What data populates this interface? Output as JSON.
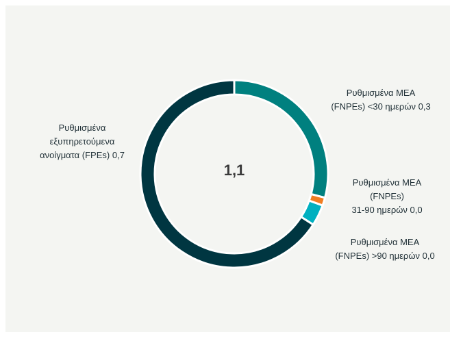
{
  "chart_data": {
    "type": "pie",
    "categories": [
      [
        "Ρυθμισμένα MEA",
        "(FNPEs) <30 ημερών"
      ],
      [
        "Ρυθμισμένα MEA",
        "(FNPEs)",
        "31-90 ημερών"
      ],
      [
        "Ρυθμισμένα MEA",
        "(FNPEs) >90 ημερών"
      ],
      [
        "Ρυθμισμένα",
        "εξυπηρετούμενα",
        "ανοίγματα (FPEs)"
      ]
    ],
    "values": [
      0.32,
      0.015,
      0.04,
      0.725
    ],
    "value_labels": [
      "0,3",
      "0,0",
      "0,0",
      "0,7"
    ],
    "colors": [
      "#00807f",
      "#f07d22",
      "#00b0c0",
      "#003641"
    ],
    "total": 1.1,
    "total_label": "1,1"
  }
}
